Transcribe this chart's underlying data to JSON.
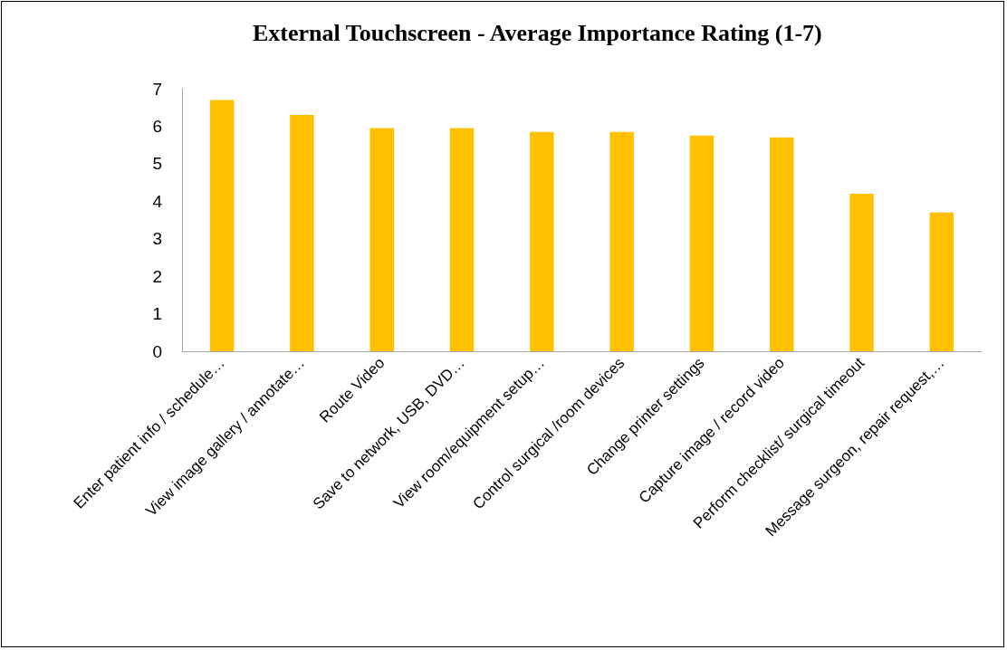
{
  "chart_data": {
    "type": "bar",
    "title": "External Touchscreen - Average Importance Rating (1-7)",
    "categories": [
      "Enter patient info / schedule…",
      "View image gallery / annotate…",
      "Route Video",
      "Save to network, USB, DVD…",
      "View room/equipment setup…",
      "Control surgical /room devices",
      "Change printer settings",
      "Capture image / record video",
      "Perform checklist/ surgical timeout",
      "Message surgeon, repair request,…"
    ],
    "values": [
      6.7,
      6.3,
      5.95,
      5.95,
      5.85,
      5.85,
      5.75,
      5.7,
      4.2,
      3.7
    ],
    "color": "#ffc000",
    "ylim": [
      0,
      7
    ],
    "yticks": [
      0,
      1,
      2,
      3,
      4,
      5,
      6,
      7
    ],
    "grid": false
  }
}
